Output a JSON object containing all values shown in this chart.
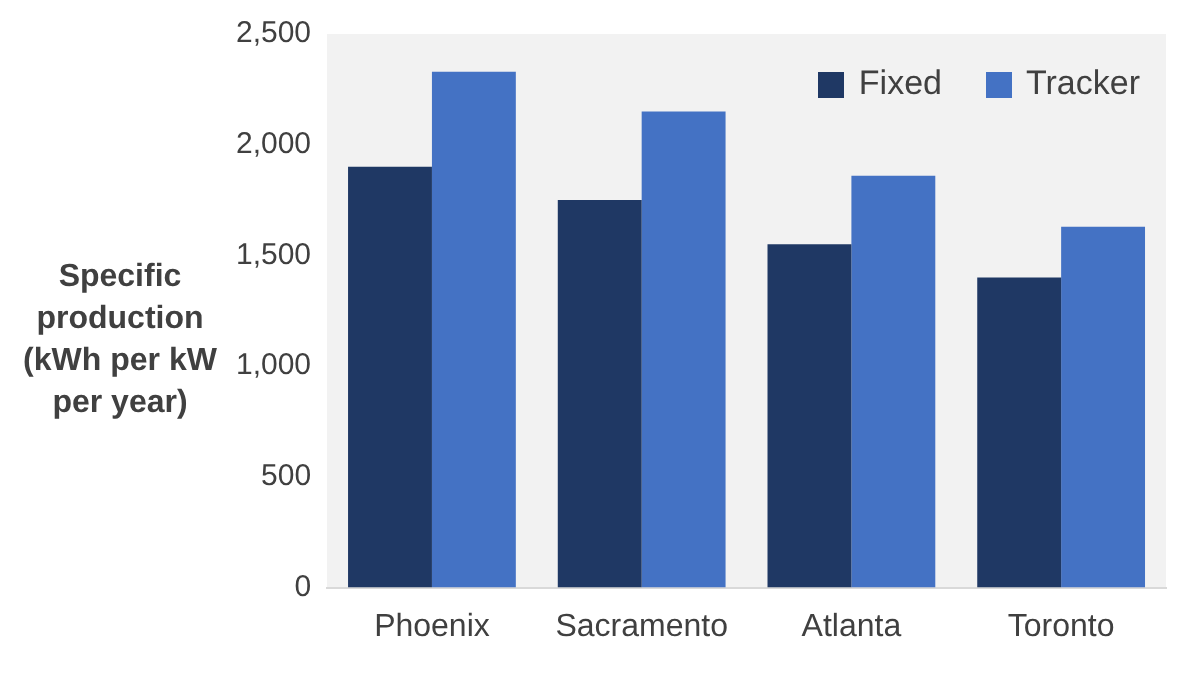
{
  "chart_data": {
    "type": "bar",
    "ylabel": "Specific production (kWh per kW per year)",
    "categories": [
      "Phoenix",
      "Sacramento",
      "Atlanta",
      "Toronto"
    ],
    "series": [
      {
        "name": "Fixed",
        "color": "#1f3864",
        "values": [
          1900,
          1750,
          1550,
          1400
        ]
      },
      {
        "name": "Tracker",
        "color": "#4472c4",
        "values": [
          2330,
          2150,
          1860,
          1630
        ]
      }
    ],
    "ylim": [
      0,
      2500
    ],
    "yticks": [
      {
        "value": 0,
        "label": "0"
      },
      {
        "value": 500,
        "label": "500"
      },
      {
        "value": 1000,
        "label": "1,000"
      },
      {
        "value": 1500,
        "label": "1,500"
      },
      {
        "value": 2000,
        "label": "2,000"
      },
      {
        "value": 2500,
        "label": "2,500"
      }
    ],
    "grid": false,
    "legend": "top right"
  }
}
